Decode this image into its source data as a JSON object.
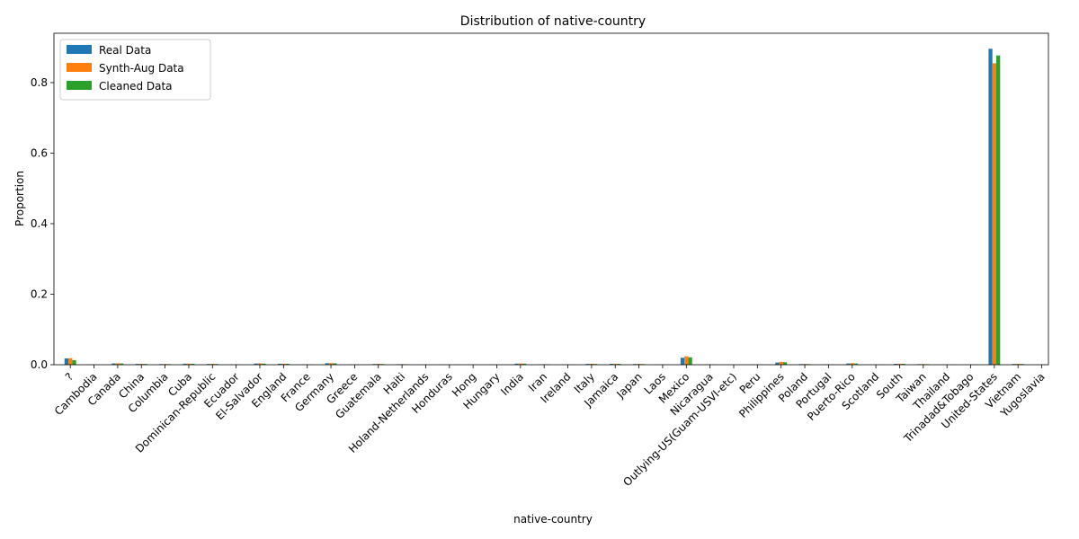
{
  "chart_data": {
    "type": "bar",
    "title": "Distribution of native-country",
    "xlabel": "native-country",
    "ylabel": "Proportion",
    "ylim": [
      0,
      0.94
    ],
    "yticks": [
      "0.0",
      "0.2",
      "0.4",
      "0.6",
      "0.8"
    ],
    "ytick_values": [
      0,
      0.2,
      0.4,
      0.6,
      0.8
    ],
    "legend_position": "top-left",
    "categories": [
      "?",
      "Cambodia",
      "Canada",
      "China",
      "Columbia",
      "Cuba",
      "Dominican-Republic",
      "Ecuador",
      "El-Salvador",
      "England",
      "France",
      "Germany",
      "Greece",
      "Guatemala",
      "Haiti",
      "Holand-Netherlands",
      "Honduras",
      "Hong",
      "Hungary",
      "India",
      "Iran",
      "Ireland",
      "Italy",
      "Jamaica",
      "Japan",
      "Laos",
      "Mexico",
      "Nicaragua",
      "Outlying-US(Guam-USVI-etc)",
      "Peru",
      "Philippines",
      "Poland",
      "Portugal",
      "Puerto-Rico",
      "Scotland",
      "South",
      "Taiwan",
      "Thailand",
      "Trinadad&Tobago",
      "United-States",
      "Vietnam",
      "Yugoslavia"
    ],
    "series": [
      {
        "name": "Real Data",
        "color": "#1f77b4",
        "values": [
          0.0179,
          0.0006,
          0.0037,
          0.0023,
          0.0018,
          0.0029,
          0.0021,
          0.0009,
          0.0033,
          0.0028,
          0.0009,
          0.0042,
          0.0009,
          0.0019,
          0.0014,
          0.0,
          0.0004,
          0.0006,
          0.0004,
          0.0031,
          0.0013,
          0.0008,
          0.0023,
          0.0025,
          0.0019,
          0.0006,
          0.0197,
          0.001,
          0.0004,
          0.0009,
          0.0061,
          0.0018,
          0.0011,
          0.0035,
          0.0004,
          0.0025,
          0.0016,
          0.0006,
          0.0006,
          0.8959,
          0.0021,
          0.0005
        ]
      },
      {
        "name": "Synth-Aug Data",
        "color": "#ff7f0e",
        "values": [
          0.0185,
          0.0008,
          0.004,
          0.0025,
          0.0022,
          0.0031,
          0.0024,
          0.0011,
          0.004,
          0.003,
          0.001,
          0.0045,
          0.0011,
          0.0024,
          0.0017,
          0.0001,
          0.0005,
          0.0008,
          0.0005,
          0.0035,
          0.0014,
          0.0009,
          0.0026,
          0.0028,
          0.0022,
          0.0008,
          0.024,
          0.0012,
          0.0005,
          0.001,
          0.008,
          0.0022,
          0.0013,
          0.0045,
          0.0005,
          0.0028,
          0.0018,
          0.0007,
          0.0007,
          0.855,
          0.0025,
          0.0006
        ]
      },
      {
        "name": "Cleaned Data",
        "color": "#2ca02c",
        "values": [
          0.013,
          0.0005,
          0.0035,
          0.0022,
          0.0017,
          0.0028,
          0.002,
          0.0008,
          0.0032,
          0.0027,
          0.0008,
          0.004,
          0.0008,
          0.0018,
          0.0013,
          0.0,
          0.0004,
          0.0006,
          0.0004,
          0.003,
          0.0012,
          0.0007,
          0.0022,
          0.0024,
          0.0018,
          0.0005,
          0.021,
          0.0009,
          0.0004,
          0.0008,
          0.007,
          0.0017,
          0.001,
          0.0034,
          0.0004,
          0.0024,
          0.0015,
          0.0005,
          0.0005,
          0.877,
          0.002,
          0.0005
        ]
      }
    ]
  }
}
